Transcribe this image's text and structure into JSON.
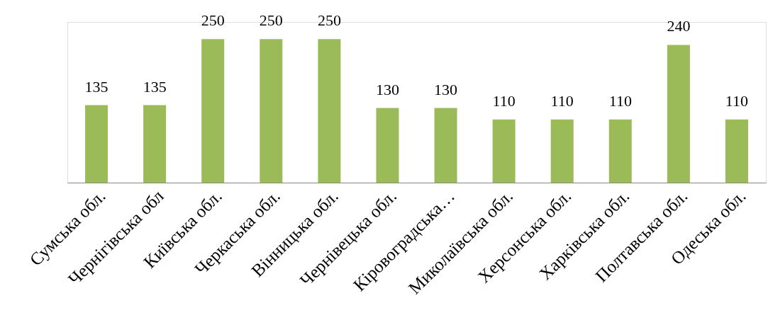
{
  "chart_data": {
    "type": "bar",
    "categories": [
      "Сумська обл.",
      "Чернігівська обл",
      "Київська обл.",
      "Черкаська обл.",
      "Вінницька  обл.",
      "Чернівецька обл.",
      "Кіровоградська…",
      "Миколаївська обл.",
      "Херсонська обл.",
      "Харківська обл.",
      "Полтавська обл.",
      "Одеська обл."
    ],
    "values": [
      135,
      135,
      250,
      250,
      250,
      130,
      130,
      110,
      110,
      110,
      240,
      110
    ],
    "color": "#9bbb59",
    "data_labels": true,
    "ylim": [
      0,
      280
    ],
    "tick_labels": "x"
  }
}
